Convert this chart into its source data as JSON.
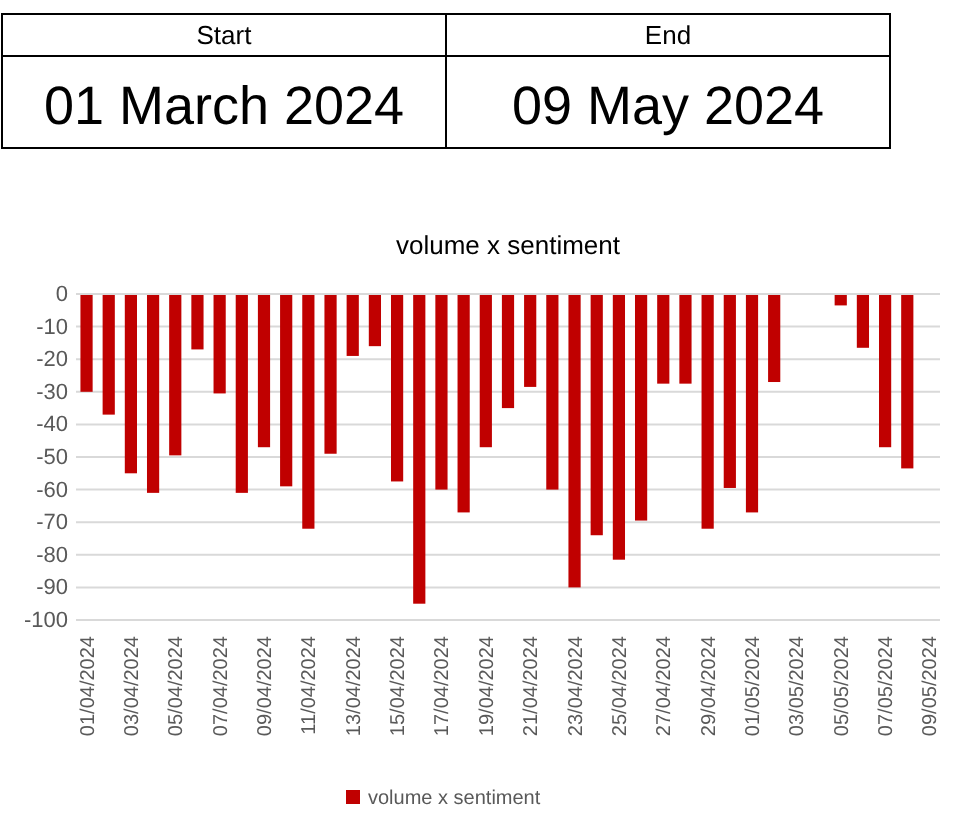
{
  "chart_data": {
    "type": "bar",
    "title": "volume x sentiment",
    "annotations": [
      "Start",
      "End",
      "01 March 2024",
      "09 May 2024"
    ],
    "categories": [
      "01/04/2024",
      null,
      "03/04/2024",
      null,
      "05/04/2024",
      null,
      "07/04/2024",
      null,
      "09/04/2024",
      null,
      "11/04/2024",
      null,
      "13/04/2024",
      null,
      "15/04/2024",
      null,
      "17/04/2024",
      null,
      "19/04/2024",
      null,
      "21/04/2024",
      null,
      "23/04/2024",
      null,
      "25/04/2024",
      null,
      "27/04/2024",
      null,
      "29/04/2024",
      null,
      "01/05/2024",
      null,
      "03/05/2024",
      null,
      "05/05/2024",
      null,
      "07/05/2024",
      null,
      "09/05/2024"
    ],
    "series": [
      {
        "name": "volume x sentiment",
        "color": "#c00000",
        "values": [
          -30,
          -37,
          -55,
          -61,
          -49.5,
          -17,
          -30.5,
          -61,
          -47,
          -59,
          -72,
          -49,
          -19,
          -16,
          -57.5,
          -95,
          -60,
          -67,
          -47,
          -35,
          -28.5,
          -60,
          -90,
          -74,
          -81.5,
          -69.5,
          -27.5,
          -27.5,
          -72,
          -59.5,
          -67,
          -27,
          null,
          null,
          -3.5,
          -16.5,
          -47,
          -53.5,
          null
        ]
      }
    ],
    "ylim": [
      -100,
      0
    ],
    "yticks": [
      -100,
      -90,
      -80,
      -70,
      -60,
      -50,
      -40,
      -30,
      -20,
      -10,
      0
    ],
    "grid": "y",
    "legend": "bottom"
  }
}
